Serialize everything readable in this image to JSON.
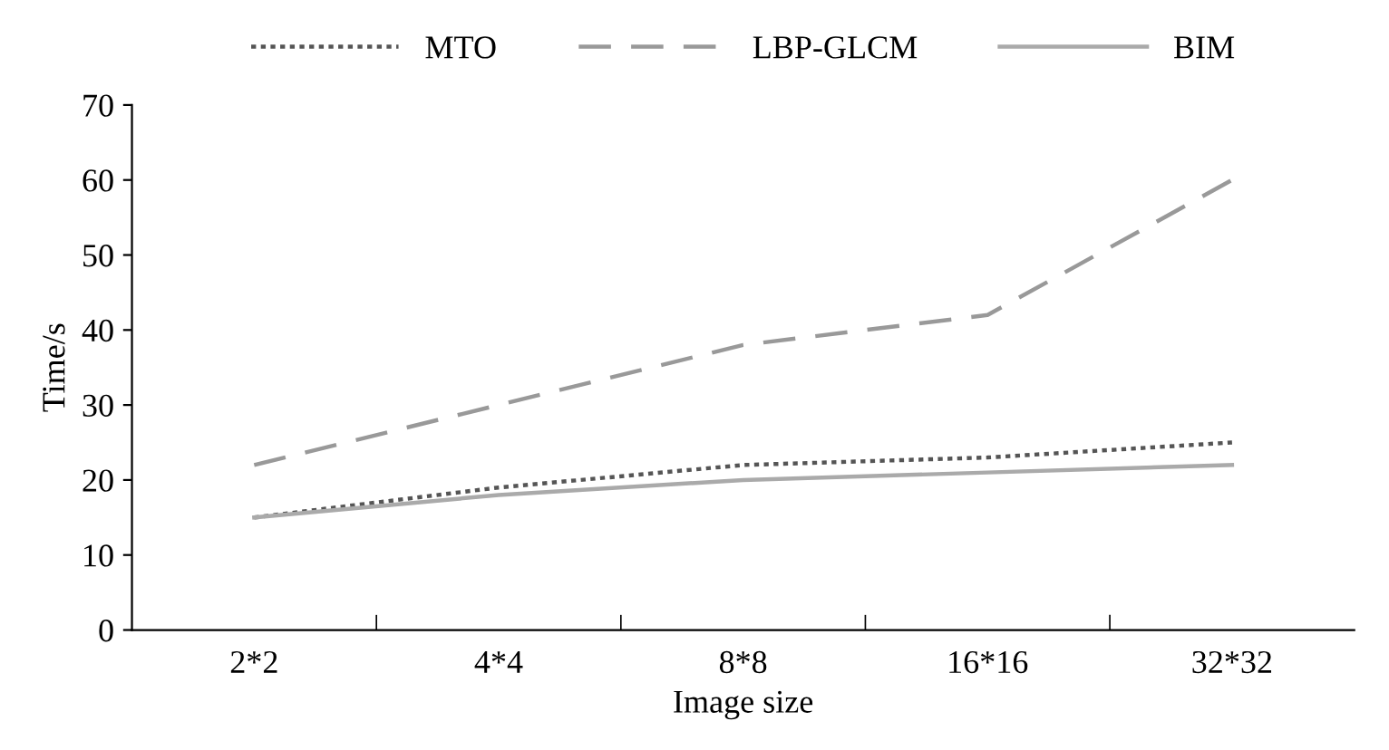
{
  "chart_data": {
    "type": "line",
    "xlabel": "Image size",
    "ylabel": "Time/s",
    "categories": [
      "2*2",
      "4*4",
      "8*8",
      "16*16",
      "32*32"
    ],
    "series": [
      {
        "name": "MTO",
        "color": "#555555",
        "line_style": "dotted",
        "values": [
          15,
          19,
          22,
          23,
          25
        ]
      },
      {
        "name": "LBP-GLCM",
        "color": "#999999",
        "line_style": "dashed",
        "values": [
          22,
          30,
          38,
          42,
          60
        ]
      },
      {
        "name": "BIM",
        "color": "#aaaaaa",
        "line_style": "solid",
        "values": [
          15,
          18,
          20,
          21,
          22
        ]
      }
    ],
    "ylim": [
      0,
      70
    ],
    "yticks": [
      0,
      10,
      20,
      30,
      40,
      50,
      60,
      70
    ],
    "grid": false,
    "legend": "top",
    "marker": "none"
  }
}
